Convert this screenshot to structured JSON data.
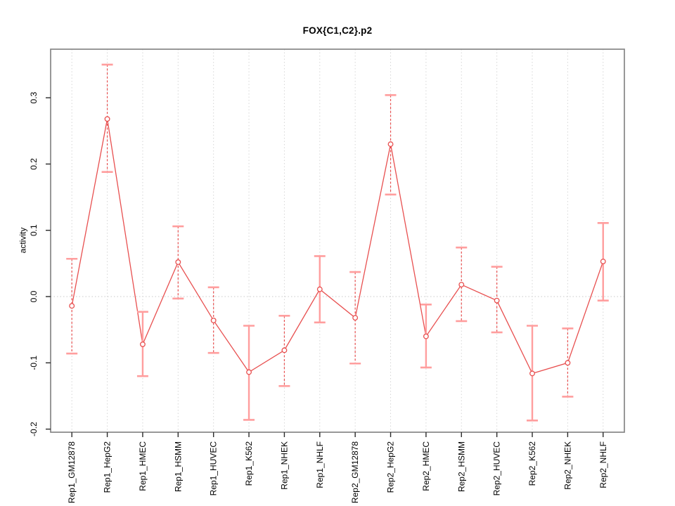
{
  "title": "FOX{C1,C2}.p2",
  "chart_data": {
    "type": "line",
    "title": "FOX{C1,C2}.p2",
    "xlabel": "",
    "ylabel": "activity",
    "ylim": [
      -0.205,
      0.373
    ],
    "yticks": [
      -0.2,
      -0.1,
      0.0,
      0.1,
      0.2,
      0.3
    ],
    "ytick_labels": [
      "-0.2",
      "-0.1",
      "0.0",
      "0.1",
      "0.2",
      "0.3"
    ],
    "grid": "vertical dotted gridline per category plus dotted horizontal line at y=0",
    "legend_position": "none",
    "categories": [
      "Rep1_GM12878",
      "Rep1_HepG2",
      "Rep1_HMEC",
      "Rep1_HSMM",
      "Rep1_HUVEC",
      "Rep1_K562",
      "Rep1_NHEK",
      "Rep1_NHLF",
      "Rep2_GM12878",
      "Rep2_HepG2",
      "Rep2_HMEC",
      "Rep2_HSMM",
      "Rep2_HUVEC",
      "Rep2_K562",
      "Rep2_NHEK",
      "Rep2_NHLF"
    ],
    "series": [
      {
        "name": "activity",
        "marker": "open-circle",
        "values": [
          -0.014,
          0.268,
          -0.072,
          0.052,
          -0.036,
          -0.114,
          -0.081,
          0.011,
          -0.032,
          0.23,
          -0.06,
          0.018,
          -0.006,
          -0.116,
          -0.1,
          0.053
        ],
        "ci_upper": [
          0.057,
          0.35,
          -0.023,
          0.106,
          0.014,
          -0.044,
          -0.029,
          0.061,
          0.037,
          0.304,
          -0.012,
          0.074,
          0.045,
          -0.044,
          -0.048,
          0.111
        ],
        "ci_lower": [
          -0.086,
          0.188,
          -0.12,
          -0.003,
          -0.085,
          -0.186,
          -0.135,
          -0.039,
          -0.101,
          0.154,
          -0.107,
          -0.037,
          -0.054,
          -0.187,
          -0.151,
          -0.006
        ],
        "error_bar_line_style": [
          "dashed",
          "dashed",
          "solid",
          "dashed",
          "dashed",
          "solid",
          "dashed",
          "solid",
          "dashed",
          "dashed",
          "solid",
          "dashed",
          "dashed",
          "solid",
          "dashed",
          "solid"
        ]
      }
    ],
    "colors": {
      "line": "#e85050",
      "point": "#e85050",
      "error_bar_dashed": "#e85050",
      "error_bar_solid": "#ff9e9e",
      "error_cap": "#ff9e9e",
      "gridline": "#d6d6d6",
      "zero_line": "#c9c9c9",
      "frame": "#868686",
      "tick": "#2a2a2a",
      "text": "#000000",
      "background": "#ffffff"
    }
  }
}
